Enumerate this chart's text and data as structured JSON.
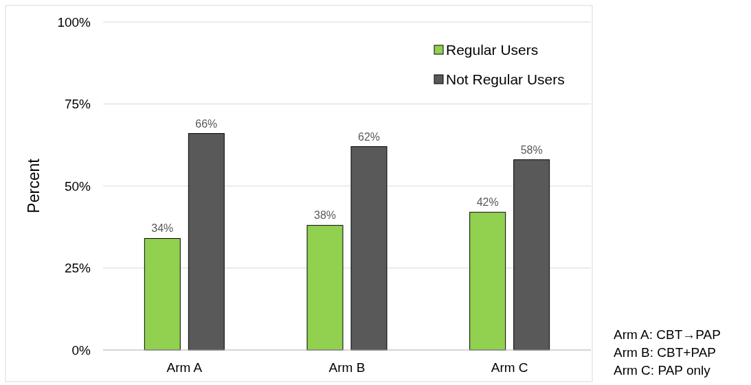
{
  "chart_data": {
    "type": "bar",
    "ylabel": "Percent",
    "categories": [
      "Arm A",
      "Arm B",
      "Arm C"
    ],
    "series": [
      {
        "name": "Regular Users",
        "color": "#92d050",
        "values": [
          34,
          38,
          42
        ],
        "value_labels": [
          "34%",
          "38%",
          "42%"
        ]
      },
      {
        "name": "Not Regular Users",
        "color": "#595959",
        "values": [
          66,
          62,
          58
        ],
        "value_labels": [
          "66%",
          "62%",
          "58%"
        ]
      }
    ],
    "ylim": [
      0,
      100
    ],
    "yticks": [
      {
        "value": 0,
        "label": "0%"
      },
      {
        "value": 25,
        "label": "25%"
      },
      {
        "value": 50,
        "label": "50%"
      },
      {
        "value": 75,
        "label": "75%"
      },
      {
        "value": 100,
        "label": "100%"
      }
    ],
    "grid": "y",
    "legend": "top right",
    "annotations": [
      "Arm A: CBT→PAP",
      "Arm B: CBT+PAP",
      "Arm C: PAP only"
    ]
  }
}
